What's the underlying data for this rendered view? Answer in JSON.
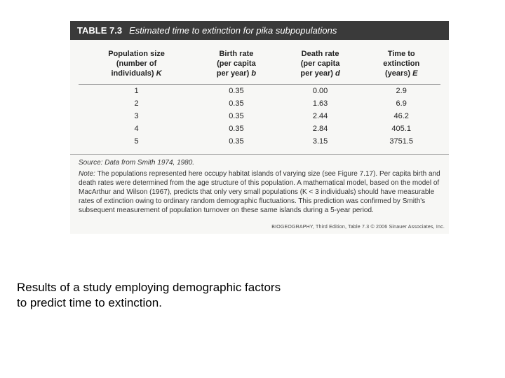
{
  "table": {
    "number": "TABLE 7.3",
    "title": "Estimated time to extinction for pika subpopulations",
    "columns": [
      {
        "line1": "Population size",
        "line2": "(number of",
        "line3": "individuals)",
        "var": "K"
      },
      {
        "line1": "Birth rate",
        "line2": "(per capita",
        "line3": "per year)",
        "var": "b"
      },
      {
        "line1": "Death rate",
        "line2": "(per capita",
        "line3": "per year)",
        "var": "d"
      },
      {
        "line1": "Time to",
        "line2": "extinction",
        "line3": "(years)",
        "var": "E"
      }
    ],
    "rows": [
      [
        "1",
        "0.35",
        "0.00",
        "2.9"
      ],
      [
        "2",
        "0.35",
        "1.63",
        "6.9"
      ],
      [
        "3",
        "0.35",
        "2.44",
        "46.2"
      ],
      [
        "4",
        "0.35",
        "2.84",
        "405.1"
      ],
      [
        "5",
        "0.35",
        "3.15",
        "3751.5"
      ]
    ],
    "source": "Source: Data from Smith 1974, 1980.",
    "note_label": "Note:",
    "note_text": "The populations represented here occupy habitat islands of varying size (see Figure 7.17). Per capita birth and death rates were determined from the age structure of this population. A mathematical model, based on the model of MacArthur and Wilson (1967), predicts that only very small populations (K < 3 individuals) should have measurable rates of extinction owing to ordinary random demographic fluctuations. This prediction was confirmed by Smith's subsequent measurement of population turnover on these same islands during a 5-year period.",
    "footer_credit": "BIOGEOGRAPHY, Third Edition, Table 7.3  © 2006 Sinauer Associates, Inc."
  },
  "caption": "Results of a study employing demographic factors to predict time to extinction."
}
